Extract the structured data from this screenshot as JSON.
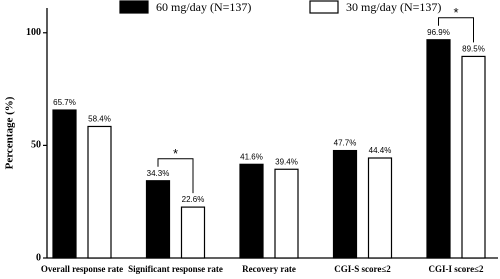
{
  "chart_data": {
    "type": "bar",
    "y_label": "Percentage (%)",
    "categories": [
      "Overall response rate",
      "Significant response rate",
      "Recovery rate",
      "CGI-S score≤2",
      "CGI-I score≤2"
    ],
    "series": [
      {
        "name": "60 mg/day (N=137)",
        "color": "#000000",
        "values": [
          65.7,
          34.3,
          41.6,
          47.7,
          96.9
        ],
        "value_labels": [
          "65.7%",
          "34.3%",
          "41.6%",
          "47.7%",
          "96.9%"
        ]
      },
      {
        "name": "30 mg/day (N=137)",
        "color": "#ffffff",
        "values": [
          58.4,
          22.6,
          39.4,
          44.4,
          89.5
        ],
        "value_labels": [
          "58.4%",
          "22.6%",
          "39.4%",
          "44.4%",
          "89.5%"
        ]
      }
    ],
    "significance": [
      null,
      "*",
      null,
      null,
      "*"
    ],
    "ylim": [
      0,
      111
    ],
    "yticks": [
      0,
      50,
      100
    ],
    "legend": "top",
    "grid": false
  }
}
